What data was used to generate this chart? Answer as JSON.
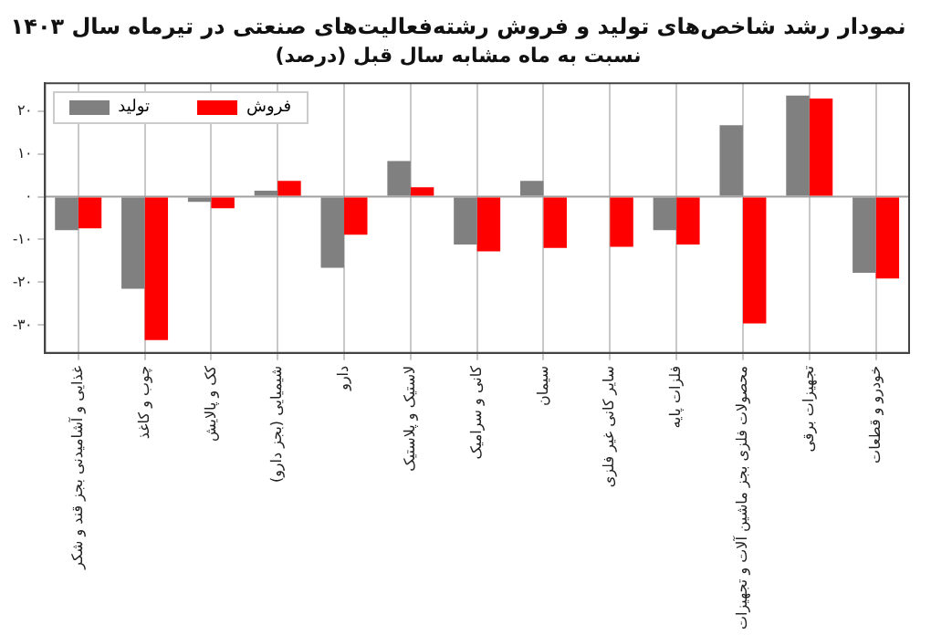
{
  "chart_data": {
    "type": "bar",
    "title": "نمودار رشد شاخص‌های تولید و فروش رشته‌فعالیت‌های صنعتی در تیرماه سال ۱۴۰۳",
    "subtitle": "نسبت به ماه مشابه سال قبل (درصد)",
    "categories": [
      "غذایی و آشامیدنی بجز قند و شکر",
      "چوب و کاغذ",
      "کک و پالایش",
      "شیمیایی (بجز دارو)",
      "دارو",
      "لاستیک و پلاستیک",
      "کانی و سرامیک",
      "سیمان",
      "سایر کانی غیر فلزی",
      "فلزات پایه",
      "محصولات فلزی بجز ماشین آلات و تجهیزات",
      "تجهیزات برقی",
      "خودرو و قطعات"
    ],
    "series": [
      {
        "name": "تولید",
        "color": "#808080",
        "values": [
          -7.8,
          -21.5,
          -1.2,
          1.4,
          -16.6,
          8.3,
          -11.2,
          3.7,
          0,
          -7.8,
          16.7,
          23.6,
          -17.8
        ]
      },
      {
        "name": "فروش",
        "color": "#ff0000",
        "values": [
          -7.4,
          -33.5,
          -2.7,
          3.7,
          -8.9,
          2.2,
          -12.8,
          -12,
          -11.7,
          -11.2,
          -29.6,
          22.9,
          -19.1
        ]
      }
    ],
    "ylim": [
      -36.5,
      26.5
    ],
    "yticks": [
      {
        "value": 20,
        "label": "۲۰"
      },
      {
        "value": 10,
        "label": "۱۰"
      },
      {
        "value": 0,
        "label": "۰"
      },
      {
        "value": -10,
        "label": "-۱۰"
      },
      {
        "value": -20,
        "label": "-۲۰"
      },
      {
        "value": -30,
        "label": "-۳۰"
      }
    ],
    "ref_lines": [
      {
        "axis": "y",
        "value": 0,
        "color": "#a0a0a0"
      }
    ],
    "grid": "x",
    "legend": "top left"
  }
}
